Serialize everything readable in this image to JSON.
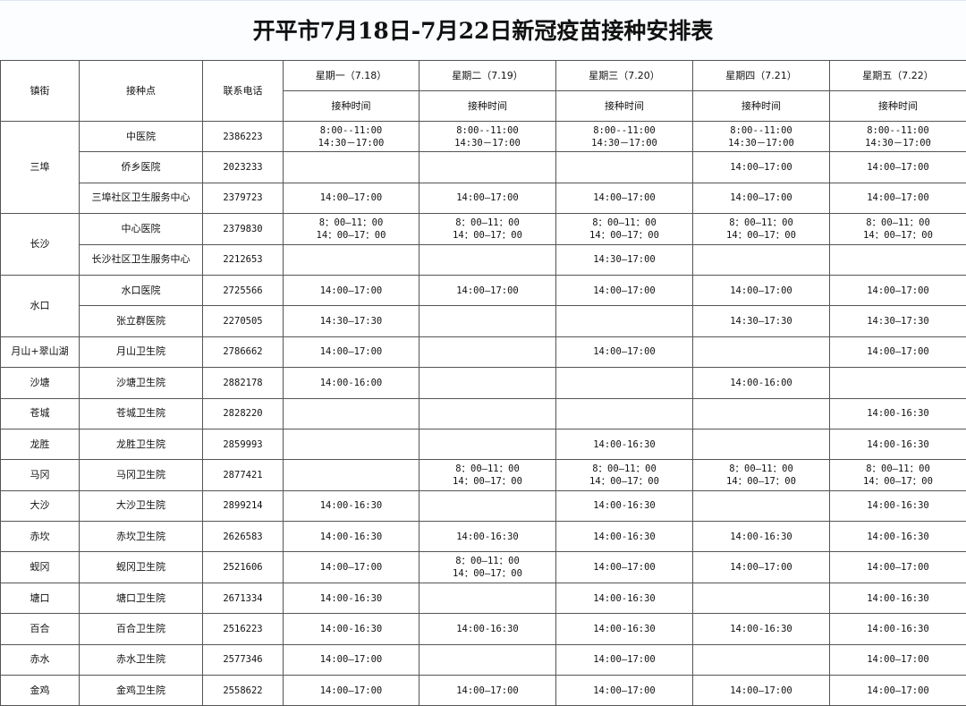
{
  "title": "开平市7月18日-7月22日新冠疫苗接种安排表",
  "header": {
    "town": "镇街",
    "site": "接种点",
    "phone": "联系电话",
    "days": [
      "星期一（7.18）",
      "星期二（7.19）",
      "星期三（7.20）",
      "星期四（7.21）",
      "星期五（7.22）"
    ],
    "time_label": "接种时间"
  },
  "groups": [
    {
      "town": "三埠",
      "rows": [
        {
          "site": "中医院",
          "phone": "2386223",
          "times": [
            "8:00--11:00\n14:30－17:00",
            "8:00--11:00\n14:30－17:00",
            "8:00--11:00\n14:30－17:00",
            "8:00--11:00\n14:30－17:00",
            "8:00--11:00\n14:30－17:00"
          ]
        },
        {
          "site": "侨乡医院",
          "phone": "2023233",
          "times": [
            "",
            "",
            "",
            "14:00—17:00",
            "14:00—17:00"
          ]
        },
        {
          "site": "三埠社区卫生服务中心",
          "phone": "2379723",
          "times": [
            "14:00—17:00",
            "14:00—17:00",
            "14:00—17:00",
            "14:00—17:00",
            "14:00—17:00"
          ]
        }
      ]
    },
    {
      "town": "长沙",
      "rows": [
        {
          "site": "中心医院",
          "phone": "2379830",
          "times": [
            "8：00—11：00\n14：00—17：00",
            "8：00—11：00\n14：00—17：00",
            "8：00—11：00\n14：00—17：00",
            "8：00—11：00\n14：00—17：00",
            "8：00—11：00\n14：00—17：00"
          ]
        },
        {
          "site": "长沙社区卫生服务中心",
          "phone": "2212653",
          "times": [
            "",
            "",
            "14:30—17:00",
            "",
            ""
          ]
        }
      ]
    },
    {
      "town": "水口",
      "rows": [
        {
          "site": "水口医院",
          "phone": "2725566",
          "times": [
            "14:00—17:00",
            "14:00—17:00",
            "14:00—17:00",
            "14:00—17:00",
            "14:00—17:00"
          ]
        },
        {
          "site": "张立群医院",
          "phone": "2270505",
          "times": [
            "14:30—17:30",
            "",
            "",
            "14:30—17:30",
            "14:30—17:30"
          ]
        }
      ]
    },
    {
      "town": "月山+翠山湖",
      "rows": [
        {
          "site": "月山卫生院",
          "phone": "2786662",
          "times": [
            "14:00—17:00",
            "",
            "14:00—17:00",
            "",
            "14:00—17:00"
          ]
        }
      ]
    },
    {
      "town": "沙塘",
      "rows": [
        {
          "site": "沙塘卫生院",
          "phone": "2882178",
          "times": [
            "14:00-16:00",
            "",
            "",
            "14:00-16:00",
            ""
          ]
        }
      ]
    },
    {
      "town": "苍城",
      "rows": [
        {
          "site": "苍城卫生院",
          "phone": "2828220",
          "times": [
            "",
            "",
            "",
            "",
            "14:00-16:30"
          ]
        }
      ]
    },
    {
      "town": "龙胜",
      "rows": [
        {
          "site": "龙胜卫生院",
          "phone": "2859993",
          "times": [
            "",
            "",
            "14:00-16:30",
            "",
            "14:00-16:30"
          ]
        }
      ]
    },
    {
      "town": "马冈",
      "rows": [
        {
          "site": "马冈卫生院",
          "phone": "2877421",
          "times": [
            "",
            "8：00—11：00\n14：00—17：00",
            "8：00—11：00\n14：00—17：00",
            "8：00—11：00\n14：00—17：00",
            "8：00—11：00\n14：00—17：00"
          ]
        }
      ]
    },
    {
      "town": "大沙",
      "rows": [
        {
          "site": "大沙卫生院",
          "phone": "2899214",
          "times": [
            "14:00-16:30",
            "",
            "14:00-16:30",
            "",
            "14:00-16:30"
          ]
        }
      ]
    },
    {
      "town": "赤坎",
      "rows": [
        {
          "site": "赤坎卫生院",
          "phone": "2626583",
          "times": [
            "14:00-16:30",
            "14:00-16:30",
            "14:00-16:30",
            "14:00-16:30",
            "14:00-16:30"
          ]
        }
      ]
    },
    {
      "town": "蚬冈",
      "rows": [
        {
          "site": "蚬冈卫生院",
          "phone": "2521606",
          "times": [
            "14:00—17:00",
            "8：00—11：00\n14：00—17：00",
            "14:00—17:00",
            "14:00—17:00",
            "14:00—17:00"
          ]
        }
      ]
    },
    {
      "town": "塘口",
      "rows": [
        {
          "site": "塘口卫生院",
          "phone": "2671334",
          "times": [
            "14:00-16:30",
            "",
            "14:00-16:30",
            "",
            "14:00-16:30"
          ]
        }
      ]
    },
    {
      "town": "百合",
      "rows": [
        {
          "site": "百合卫生院",
          "phone": "2516223",
          "times": [
            "14:00-16:30",
            "14:00-16:30",
            "14:00-16:30",
            "14:00-16:30",
            "14:00-16:30"
          ]
        }
      ]
    },
    {
      "town": "赤水",
      "rows": [
        {
          "site": "赤水卫生院",
          "phone": "2577346",
          "times": [
            "14:00—17:00",
            "",
            "14:00—17:00",
            "",
            "14:00—17:00"
          ]
        }
      ]
    },
    {
      "town": "金鸡",
      "rows": [
        {
          "site": "金鸡卫生院",
          "phone": "2558622",
          "times": [
            "14:00—17:00",
            "14:00—17:00",
            "14:00—17:00",
            "14:00—17:00",
            "14:00—17:00"
          ]
        }
      ]
    }
  ]
}
